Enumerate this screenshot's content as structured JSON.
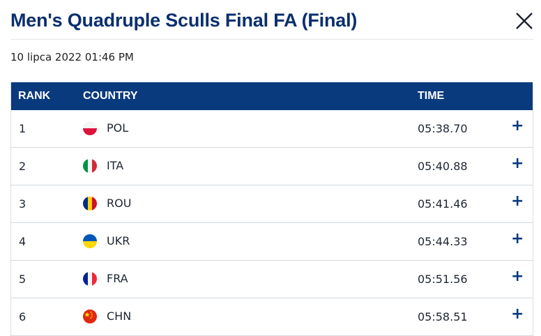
{
  "title": "Men's Quadruple Sculls Final FA (Final)",
  "date": "10 lipca 2022 01:46 PM",
  "columns": {
    "rank": "RANK",
    "country": "COUNTRY",
    "time": "TIME"
  },
  "expand_symbol": "+",
  "rows": [
    {
      "rank": "1",
      "country": "POL",
      "time": "05:38.70"
    },
    {
      "rank": "2",
      "country": "ITA",
      "time": "05:40.88"
    },
    {
      "rank": "3",
      "country": "ROU",
      "time": "05:41.46"
    },
    {
      "rank": "4",
      "country": "UKR",
      "time": "05:44.33"
    },
    {
      "rank": "5",
      "country": "FRA",
      "time": "05:51.56"
    },
    {
      "rank": "6",
      "country": "CHN",
      "time": "05:58.51"
    }
  ],
  "colors": {
    "header_bg": "#0a3a7e",
    "title": "#0a2f6e"
  }
}
